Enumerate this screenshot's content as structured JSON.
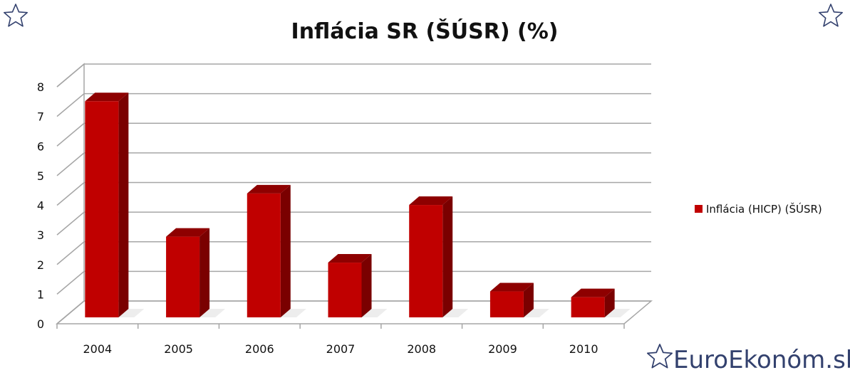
{
  "chart_data": {
    "type": "bar",
    "title": "Inflácia SR (ŠÚSR) (%)",
    "xlabel": "",
    "ylabel": "",
    "categories": [
      "2004",
      "2005",
      "2006",
      "2007",
      "2008",
      "2009",
      "2010"
    ],
    "series": [
      {
        "name": "Inflácia (HICP) (ŠÚSR)",
        "values": [
          7.5,
          2.8,
          4.3,
          1.9,
          3.9,
          0.9,
          0.7
        ]
      }
    ],
    "ylim": [
      0,
      8
    ],
    "yticks": [
      "0",
      "1",
      "2",
      "3",
      "4",
      "5",
      "6",
      "7",
      "8"
    ],
    "grid": true,
    "three_d": true,
    "legend_position": "right",
    "colors": {
      "bar_front": "#c00000",
      "bar_side": "#7a0000",
      "bar_top": "#8e0000",
      "grid": "#a6a6a6"
    }
  },
  "branding": {
    "site": "EuroEkonóm.sk",
    "corner_icon": "star-outline-icon",
    "brand_color": "#33416e"
  }
}
